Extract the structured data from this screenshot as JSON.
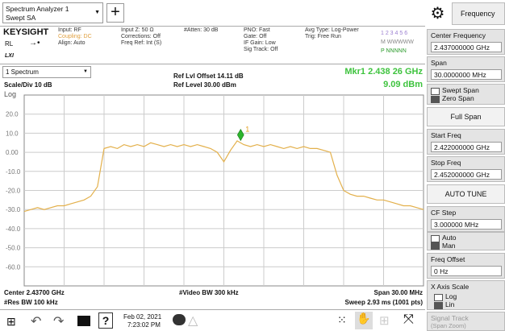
{
  "toolbar": {
    "window_title": "Spectrum Analyzer 1",
    "mode": "Swept SA",
    "tab": "Frequency"
  },
  "info": {
    "brand": "KEYSIGHT",
    "rl": "RL",
    "lxi": "LXI",
    "col1": [
      "Input: RF",
      "Coupling: DC",
      "Align: Auto"
    ],
    "col2": [
      "Input Z: 50 Ω",
      "Corrections: Off",
      "Freq Ref: Int (S)"
    ],
    "col3": [
      "#Atten: 30 dB"
    ],
    "col4": [
      "PNO: Fast",
      "Gate: Off",
      "IF Gain: Low",
      "Sig Track: Off"
    ],
    "col5": [
      "Avg Type: Log-Power",
      "Trig: Free Run"
    ],
    "traces": [
      "1 2 3 4 5 6",
      "M WWWWW",
      "P NNNNN"
    ]
  },
  "window": {
    "name": "1 Spectrum",
    "scale": "Scale/Div 10 dB",
    "log": "Log",
    "ref_offset": "Ref Lvl Offset 14.11 dB",
    "ref_level": "Ref Level 30.00 dBm",
    "mkr_freq": "Mkr1  2.438 26 GHz",
    "mkr_amp": "9.09 dBm"
  },
  "chart_data": {
    "type": "line",
    "color": "#e3b04b",
    "grid": true,
    "xlim": [
      2.422,
      2.452
    ],
    "ylim": [
      -70,
      30
    ],
    "yticks": [
      {
        "value": 20,
        "label": "20.0"
      },
      {
        "value": 10,
        "label": "10.0"
      },
      {
        "value": 0,
        "label": "0.00"
      },
      {
        "value": -10,
        "label": "-10.0"
      },
      {
        "value": -20,
        "label": "-20.0"
      },
      {
        "value": -30,
        "label": "-30.0"
      },
      {
        "value": -40,
        "label": "-40.0"
      },
      {
        "value": -50,
        "label": "-50.0"
      },
      {
        "value": -60,
        "label": "-60.0"
      }
    ],
    "x": [
      2.422,
      2.4225,
      2.423,
      2.4235,
      2.424,
      2.4245,
      2.425,
      2.4255,
      2.426,
      2.4265,
      2.427,
      2.4275,
      2.428,
      2.4285,
      2.429,
      2.4295,
      2.43,
      2.4305,
      2.431,
      2.4315,
      2.432,
      2.4325,
      2.433,
      2.4335,
      2.434,
      2.4345,
      2.435,
      2.4355,
      2.436,
      2.4365,
      2.437,
      2.4375,
      2.438,
      2.4385,
      2.439,
      2.4395,
      2.44,
      2.4405,
      2.441,
      2.4415,
      2.442,
      2.4425,
      2.443,
      2.4435,
      2.444,
      2.4445,
      2.445,
      2.4455,
      2.446,
      2.4465,
      2.447,
      2.4475,
      2.448,
      2.4485,
      2.449,
      2.4495,
      2.45,
      2.4505,
      2.451,
      2.4515,
      2.452
    ],
    "values": [
      -31,
      -30,
      -29,
      -30,
      -29,
      -28,
      -28,
      -27,
      -26,
      -25,
      -23,
      -18,
      2,
      3,
      2,
      4,
      3,
      4,
      3,
      5,
      4,
      3,
      4,
      3,
      4,
      3,
      4,
      3,
      2,
      0,
      -5,
      1,
      6,
      4,
      3,
      4,
      3,
      4,
      3,
      2,
      3,
      2,
      3,
      2,
      2,
      1,
      0,
      -12,
      -20,
      -22,
      -23,
      -23,
      -24,
      -25,
      -25,
      -26,
      -27,
      -28,
      -28,
      -29,
      -30
    ],
    "marker": {
      "x": 2.43826,
      "y": 9.09,
      "label": "1",
      "color": "#2db52d"
    }
  },
  "footer": {
    "center": "Center 2.43700 GHz",
    "rbw": "#Res BW 100 kHz",
    "vbw": "#Video BW 300 kHz",
    "span": "Span 30.00 MHz",
    "sweep": "Sweep 2.93 ms (1001 pts)"
  },
  "panel": {
    "center_label": "Center Frequency",
    "center_value": "2.437000000 GHz",
    "span_label": "Span",
    "span_value": "30.0000000 MHz",
    "swept": "Swept Span",
    "zero": "Zero Span",
    "full_span": "Full Span",
    "start_label": "Start Freq",
    "start_value": "2.422000000 GHz",
    "stop_label": "Stop Freq",
    "stop_value": "2.452000000 GHz",
    "auto_tune": "AUTO TUNE",
    "cf_label": "CF Step",
    "cf_value": "3.000000 MHz",
    "auto": "Auto",
    "man": "Man",
    "offset_label": "Freq Offset",
    "offset_value": "0 Hz",
    "xscale_label": "X Axis Scale",
    "log": "Log",
    "lin": "Lin",
    "sig_label": "Signal Track",
    "sig_sub": "(Span Zoom)"
  },
  "taskbar": {
    "help": "?",
    "date": "Feb 02, 2021",
    "time": "7:23:02 PM"
  }
}
